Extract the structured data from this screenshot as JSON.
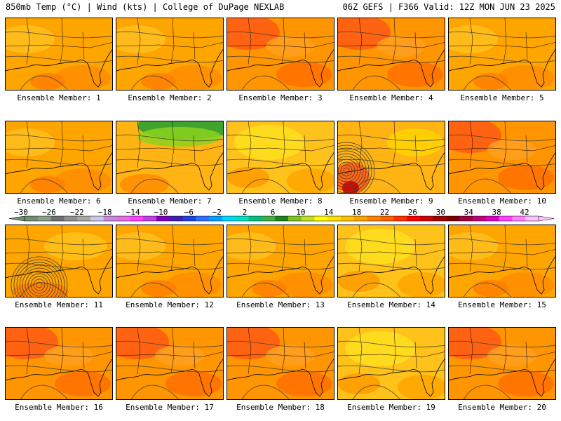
{
  "header": {
    "left_title": "850mb Temp (°C) | Wind (kts) | College of DuPage NEXLAB",
    "right_title": "06Z GEFS | F366 Valid: 12Z MON JUN 23 2025"
  },
  "panels": [
    {
      "label": "Ensemble Member: 1",
      "scheme": "warm"
    },
    {
      "label": "Ensemble Member: 2",
      "scheme": "warm"
    },
    {
      "label": "Ensemble Member: 3",
      "scheme": "hot"
    },
    {
      "label": "Ensemble Member: 4",
      "scheme": "hot"
    },
    {
      "label": "Ensemble Member: 5",
      "scheme": "warm"
    },
    {
      "label": "Ensemble Member: 6",
      "scheme": "warm"
    },
    {
      "label": "Ensemble Member: 7",
      "scheme": "cool-north"
    },
    {
      "label": "Ensemble Member: 8",
      "scheme": "yellow"
    },
    {
      "label": "Ensemble Member: 9",
      "scheme": "storm"
    },
    {
      "label": "Ensemble Member: 10",
      "scheme": "hot"
    },
    {
      "label": "Ensemble Member: 11",
      "scheme": "cyclone"
    },
    {
      "label": "Ensemble Member: 12",
      "scheme": "warm"
    },
    {
      "label": "Ensemble Member: 13",
      "scheme": "warm"
    },
    {
      "label": "Ensemble Member: 14",
      "scheme": "yellow"
    },
    {
      "label": "Ensemble Member: 15",
      "scheme": "warm"
    },
    {
      "label": "Ensemble Member: 16",
      "scheme": "hot"
    },
    {
      "label": "Ensemble Member: 17",
      "scheme": "hot"
    },
    {
      "label": "Ensemble Member: 18",
      "scheme": "hot"
    },
    {
      "label": "Ensemble Member: 19",
      "scheme": "yellow"
    },
    {
      "label": "Ensemble Member: 20",
      "scheme": "hot"
    }
  ],
  "colorbar": {
    "ticks": [
      -30,
      -26,
      -22,
      -18,
      -14,
      -10,
      -6,
      -2,
      2,
      6,
      10,
      14,
      18,
      22,
      26,
      30,
      34,
      38,
      42
    ],
    "colors": [
      "#6f8f6f",
      "#8aa08a",
      "#707070",
      "#909090",
      "#a8a8a8",
      "#c8c8e8",
      "#cc88dd",
      "#e070e8",
      "#ff40ff",
      "#c040e0",
      "#8000c0",
      "#4020b0",
      "#2040e0",
      "#3070ff",
      "#00a0ff",
      "#00d8ff",
      "#00e0c0",
      "#00c080",
      "#40b040",
      "#208020",
      "#80c020",
      "#c0e020",
      "#ffff00",
      "#ffe000",
      "#ffc000",
      "#ffa000",
      "#ff8000",
      "#ff6000",
      "#ff3000",
      "#ff0000",
      "#d00000",
      "#a00000",
      "#800000",
      "#a00040",
      "#c00080",
      "#e000c0",
      "#ff40ff",
      "#ff80ff",
      "#ffc0ff"
    ]
  }
}
